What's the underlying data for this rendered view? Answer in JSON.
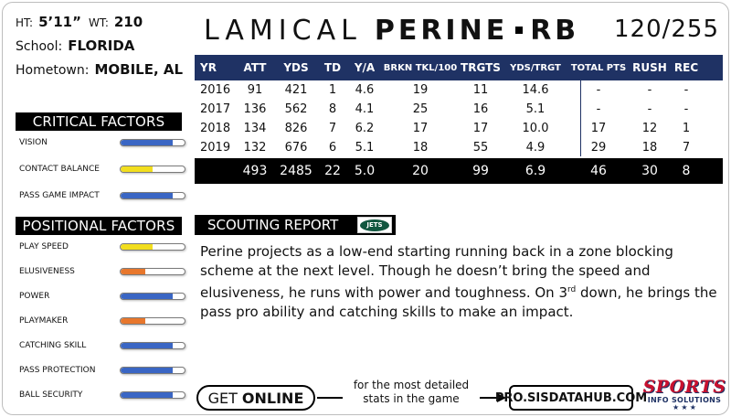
{
  "player": {
    "ht_label": "HT:",
    "ht_value": "5’11”",
    "wt_label": "WT:",
    "wt_value": "210",
    "school_label": "School:",
    "school_value": "FLORIDA",
    "hometown_label": "Hometown:",
    "hometown_value": "MOBILE, AL",
    "first_name": "LAMICAL",
    "last_name": "PERINE",
    "position": "RB",
    "rank": "120/255"
  },
  "critical_factors": {
    "title": "CRITICAL FACTORS",
    "items": [
      {
        "label": "VISION",
        "value": 0.82,
        "color": "#3a66c4"
      },
      {
        "label": "CONTACT BALANCE",
        "value": 0.5,
        "color": "#f2de1e"
      },
      {
        "label": "PASS GAME IMPACT",
        "value": 0.82,
        "color": "#3a66c4"
      }
    ]
  },
  "positional_factors": {
    "title": "POSITIONAL FACTORS",
    "items": [
      {
        "label": "PLAY SPEED",
        "value": 0.5,
        "color": "#f2de1e"
      },
      {
        "label": "ELUSIVENESS",
        "value": 0.38,
        "color": "#e8772c"
      },
      {
        "label": "POWER",
        "value": 0.82,
        "color": "#3a66c4"
      },
      {
        "label": "PLAYMAKER",
        "value": 0.38,
        "color": "#e8772c"
      },
      {
        "label": "CATCHING SKILL",
        "value": 0.82,
        "color": "#3a66c4"
      },
      {
        "label": "PASS PROTECTION",
        "value": 0.82,
        "color": "#3a66c4"
      },
      {
        "label": "BALL SECURITY",
        "value": 0.82,
        "color": "#3a66c4"
      }
    ]
  },
  "stats": {
    "headers": [
      "YR",
      "ATT",
      "YDS",
      "TD",
      "Y/A",
      "BRKN TKL/100",
      "TRGTS",
      "YDS/TRGT",
      "TOTAL PTS",
      "RUSH",
      "REC"
    ],
    "rows": [
      [
        "2016",
        "91",
        "421",
        "1",
        "4.6",
        "19",
        "11",
        "14.6",
        "-",
        "-",
        "-"
      ],
      [
        "2017",
        "136",
        "562",
        "8",
        "4.1",
        "25",
        "16",
        "5.1",
        "-",
        "-",
        "-"
      ],
      [
        "2018",
        "134",
        "826",
        "7",
        "6.2",
        "17",
        "17",
        "10.0",
        "17",
        "12",
        "1"
      ],
      [
        "2019",
        "132",
        "676",
        "6",
        "5.1",
        "18",
        "55",
        "4.9",
        "29",
        "18",
        "7"
      ]
    ],
    "totals": [
      "",
      "493",
      "2485",
      "22",
      "5.0",
      "20",
      "99",
      "6.9",
      "46",
      "30",
      "8"
    ]
  },
  "scouting": {
    "title": "SCOUTING REPORT",
    "team_logo": "JETS",
    "text_before_sup": "Perine projects as a low-end starting running back in a zone blocking scheme at the next level.  Though he doesn’t bring the speed and elusiveness, he runs with power and toughness.  On 3",
    "sup": "rd",
    "text_after_sup": " down, he brings the pass pro ability  and catching skills to make an impact."
  },
  "footer": {
    "get": "GET",
    "online": "ONLINE",
    "mid_line1": "for the most detailed",
    "mid_line2": "stats in the game",
    "url": "PRO.SISDATAHUB.COM",
    "logo_top": "SPORTS",
    "logo_bottom": "INFO SOLUTIONS",
    "logo_stars": "★ ★ ★"
  }
}
